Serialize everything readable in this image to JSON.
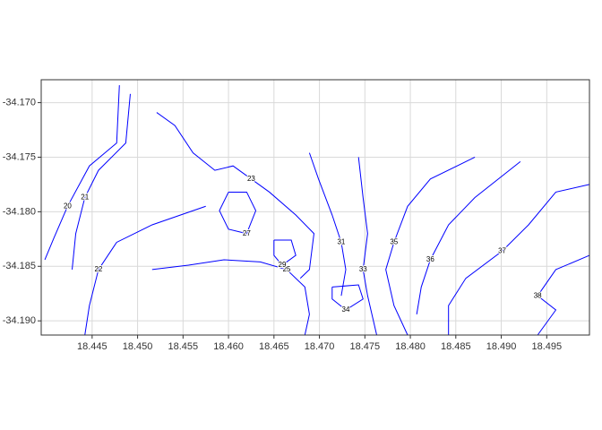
{
  "chart_data": {
    "type": "contour",
    "color": "#0000ff",
    "grid": true,
    "xlim": [
      18.4394,
      18.4997
    ],
    "ylim": [
      -34.1913,
      -34.1679
    ],
    "xticks": [
      18.445,
      {
        "value": 18.45,
        "label": "18.450"
      },
      18.455,
      {
        "value": 18.46,
        "label": "18.460"
      },
      18.465,
      {
        "value": 18.47,
        "label": "18.470"
      },
      18.475,
      {
        "value": 18.48,
        "label": "18.480"
      },
      18.485,
      {
        "value": 18.49,
        "label": "18.490"
      },
      18.495
    ],
    "yticks": [
      {
        "value": -34.17,
        "label": "-34.170"
      },
      -34.175,
      {
        "value": -34.18,
        "label": "-34.180"
      },
      -34.185,
      {
        "value": -34.19,
        "label": "-34.190"
      }
    ],
    "contours": [
      {
        "level": 20,
        "x": [
          18.448,
          18.4477,
          18.4447,
          18.4423,
          18.4408,
          18.4398
        ],
        "y": [
          -34.1684,
          -34.1737,
          -34.1758,
          -34.1795,
          -34.1824,
          -34.1844
        ]
      },
      {
        "level": 21,
        "x": [
          18.4492,
          18.4487,
          18.4457,
          18.4442,
          18.4432,
          18.4428
        ],
        "y": [
          -34.1692,
          -34.1737,
          -34.1762,
          -34.1787,
          -34.182,
          -34.1853
        ]
      },
      {
        "level": 22,
        "x": [
          18.4575,
          18.4516,
          18.4477,
          18.4457,
          18.4447,
          18.4442
        ],
        "y": [
          -34.1795,
          -34.1812,
          -34.1828,
          -34.1853,
          -34.1886,
          -34.1913
        ]
      },
      {
        "level": 23,
        "x": [
          18.4521,
          18.4541,
          18.4561,
          18.4585,
          18.4605,
          18.4625,
          18.4645,
          18.4674,
          18.4694,
          18.4689,
          18.4679
        ],
        "y": [
          -34.1709,
          -34.1721,
          -34.1746,
          -34.1762,
          -34.1758,
          -34.177,
          -34.1782,
          -34.1803,
          -34.182,
          -34.1853,
          -34.1861
        ]
      },
      {
        "level": 25,
        "x": [
          18.4516,
          18.4556,
          18.4595,
          18.4635,
          18.4664,
          18.4684,
          18.4689,
          18.4684
        ],
        "y": [
          -34.1853,
          -34.1849,
          -34.1844,
          -34.1846,
          -34.1853,
          -34.1869,
          -34.1894,
          -34.1913
        ]
      },
      {
        "level": 27,
        "x": [
          18.46,
          18.462,
          18.463,
          18.462,
          18.46,
          18.459,
          18.46
        ],
        "y": [
          -34.1782,
          -34.1782,
          -34.1799,
          -34.182,
          -34.1816,
          -34.1799,
          -34.1782
        ]
      },
      {
        "level": 29,
        "x": [
          18.465,
          18.4669,
          18.4674,
          18.4659,
          18.465,
          18.465
        ],
        "y": [
          -34.1826,
          -34.1826,
          -34.184,
          -34.1849,
          -34.184,
          -34.1826
        ]
      },
      {
        "level": 31,
        "x": [
          18.4689,
          18.4699,
          18.4714,
          18.4724,
          18.4729,
          18.4724
        ],
        "y": [
          -34.1746,
          -34.177,
          -34.1803,
          -34.1828,
          -34.1853,
          -34.1877
        ]
      },
      {
        "level": 33,
        "x": [
          18.4743,
          18.4748,
          18.4753,
          18.4748,
          18.4753,
          18.4763
        ],
        "y": [
          -34.175,
          -34.1787,
          -34.182,
          -34.1853,
          -34.1877,
          -34.1913
        ]
      },
      {
        "level": 34,
        "x": [
          18.4714,
          18.4743,
          18.4748,
          18.4729,
          18.4714,
          18.4714
        ],
        "y": [
          -34.1869,
          -34.1867,
          -34.188,
          -34.189,
          -34.188,
          -34.1869
        ]
      },
      {
        "level": 35,
        "x": [
          18.4871,
          18.4822,
          18.4797,
          18.4782,
          18.4773,
          18.4782,
          18.4797
        ],
        "y": [
          -34.175,
          -34.177,
          -34.1795,
          -34.1828,
          -34.1853,
          -34.1886,
          -34.1913
        ]
      },
      {
        "level": 36,
        "x": [
          18.4921,
          18.4871,
          18.4842,
          18.4822,
          18.4812,
          18.4807
        ],
        "y": [
          -34.1754,
          -34.1787,
          -34.1812,
          -34.1844,
          -34.1869,
          -34.1894
        ]
      },
      {
        "level": 37,
        "x": [
          18.4997,
          18.496,
          18.493,
          18.4901,
          18.4861,
          18.4842,
          18.4842
        ],
        "y": [
          -34.1775,
          -34.1782,
          -34.1812,
          -34.1836,
          -34.1861,
          -34.1886,
          -34.1913
        ]
      },
      {
        "level": 38,
        "x": [
          18.4997,
          18.496,
          18.494,
          18.496,
          18.494
        ],
        "y": [
          -34.184,
          -34.1853,
          -34.1877,
          -34.189,
          -34.1913
        ]
      }
    ]
  }
}
